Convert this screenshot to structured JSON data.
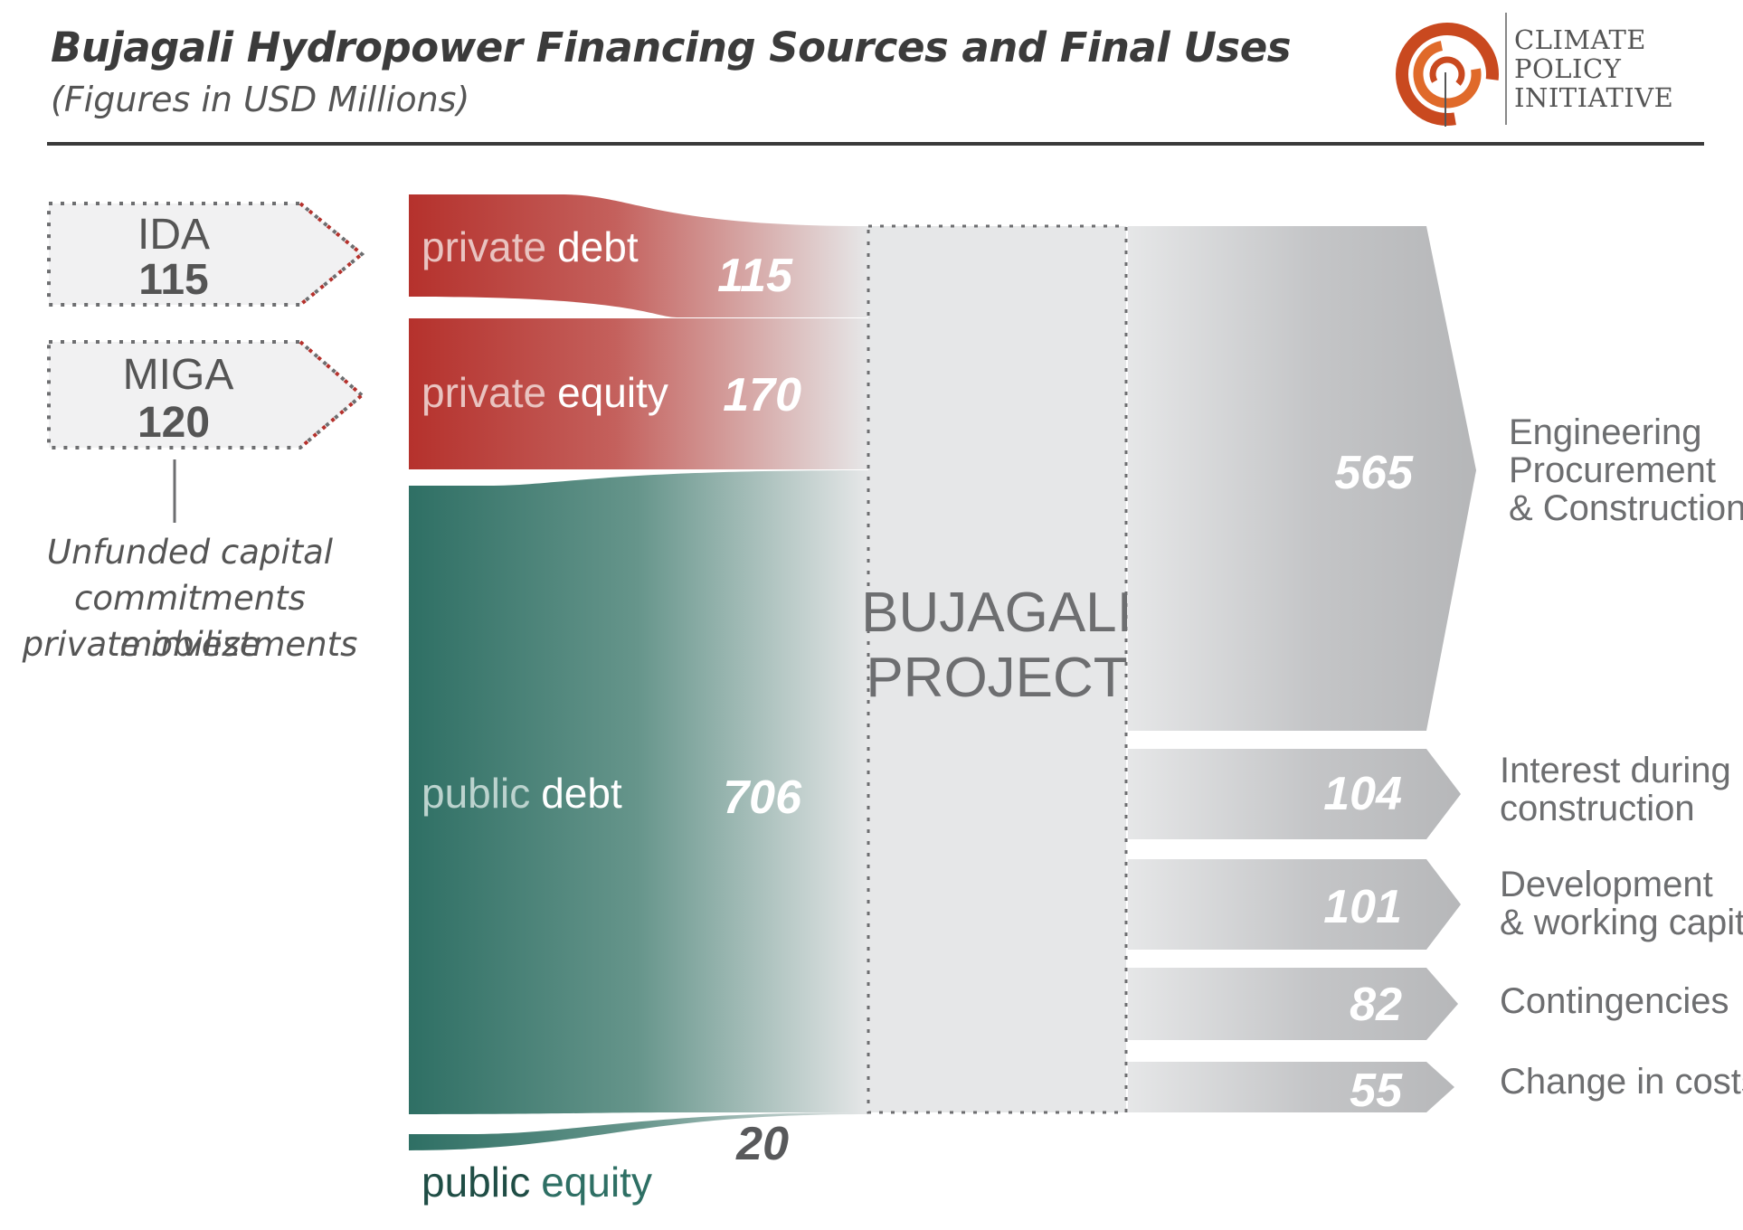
{
  "header": {
    "title": "Bujagali Hydropower Financing Sources and Final Uses",
    "subtitle": "(Figures in USD Millions)"
  },
  "logo": {
    "line1": "CLIMATE",
    "line2": "POLICY",
    "line3": "INITIATIVE",
    "icon": "spiral-logo-icon"
  },
  "guarantees": [
    {
      "name": "IDA",
      "value": "115"
    },
    {
      "name": "MIGA",
      "value": "120"
    }
  ],
  "guarantee_note": {
    "line1": "Unfunded capital",
    "line2": "commitments mobilize",
    "line3": "private investments"
  },
  "sources": [
    {
      "prefix": "private",
      "kind": "debt",
      "value": "115",
      "color": "#b5312c"
    },
    {
      "prefix": "private",
      "kind": "equity",
      "value": "170",
      "color": "#b5312c"
    },
    {
      "prefix": "public",
      "kind": "debt",
      "value": "706",
      "color": "#2e6f64"
    },
    {
      "prefix": "public",
      "kind": "equity",
      "value": "20",
      "color": "#2e6f64"
    }
  ],
  "project": {
    "line1": "BUJAGALI",
    "line2": "PROJECT"
  },
  "uses": [
    {
      "value": "565",
      "label_lines": [
        "Engineering",
        "Procurement",
        "& Construction"
      ]
    },
    {
      "value": "104",
      "label_lines": [
        "Interest during",
        "construction"
      ]
    },
    {
      "value": "101",
      "label_lines": [
        "Development",
        "& working capital"
      ]
    },
    {
      "value": "82",
      "label_lines": [
        "Contingencies"
      ]
    },
    {
      "value": "55",
      "label_lines": [
        "Change in costs"
      ]
    }
  ],
  "colors": {
    "private": "#b5312c",
    "public": "#2e6f64",
    "uses": "#b6b7b9",
    "project_fill": "#e6e7e8"
  }
}
